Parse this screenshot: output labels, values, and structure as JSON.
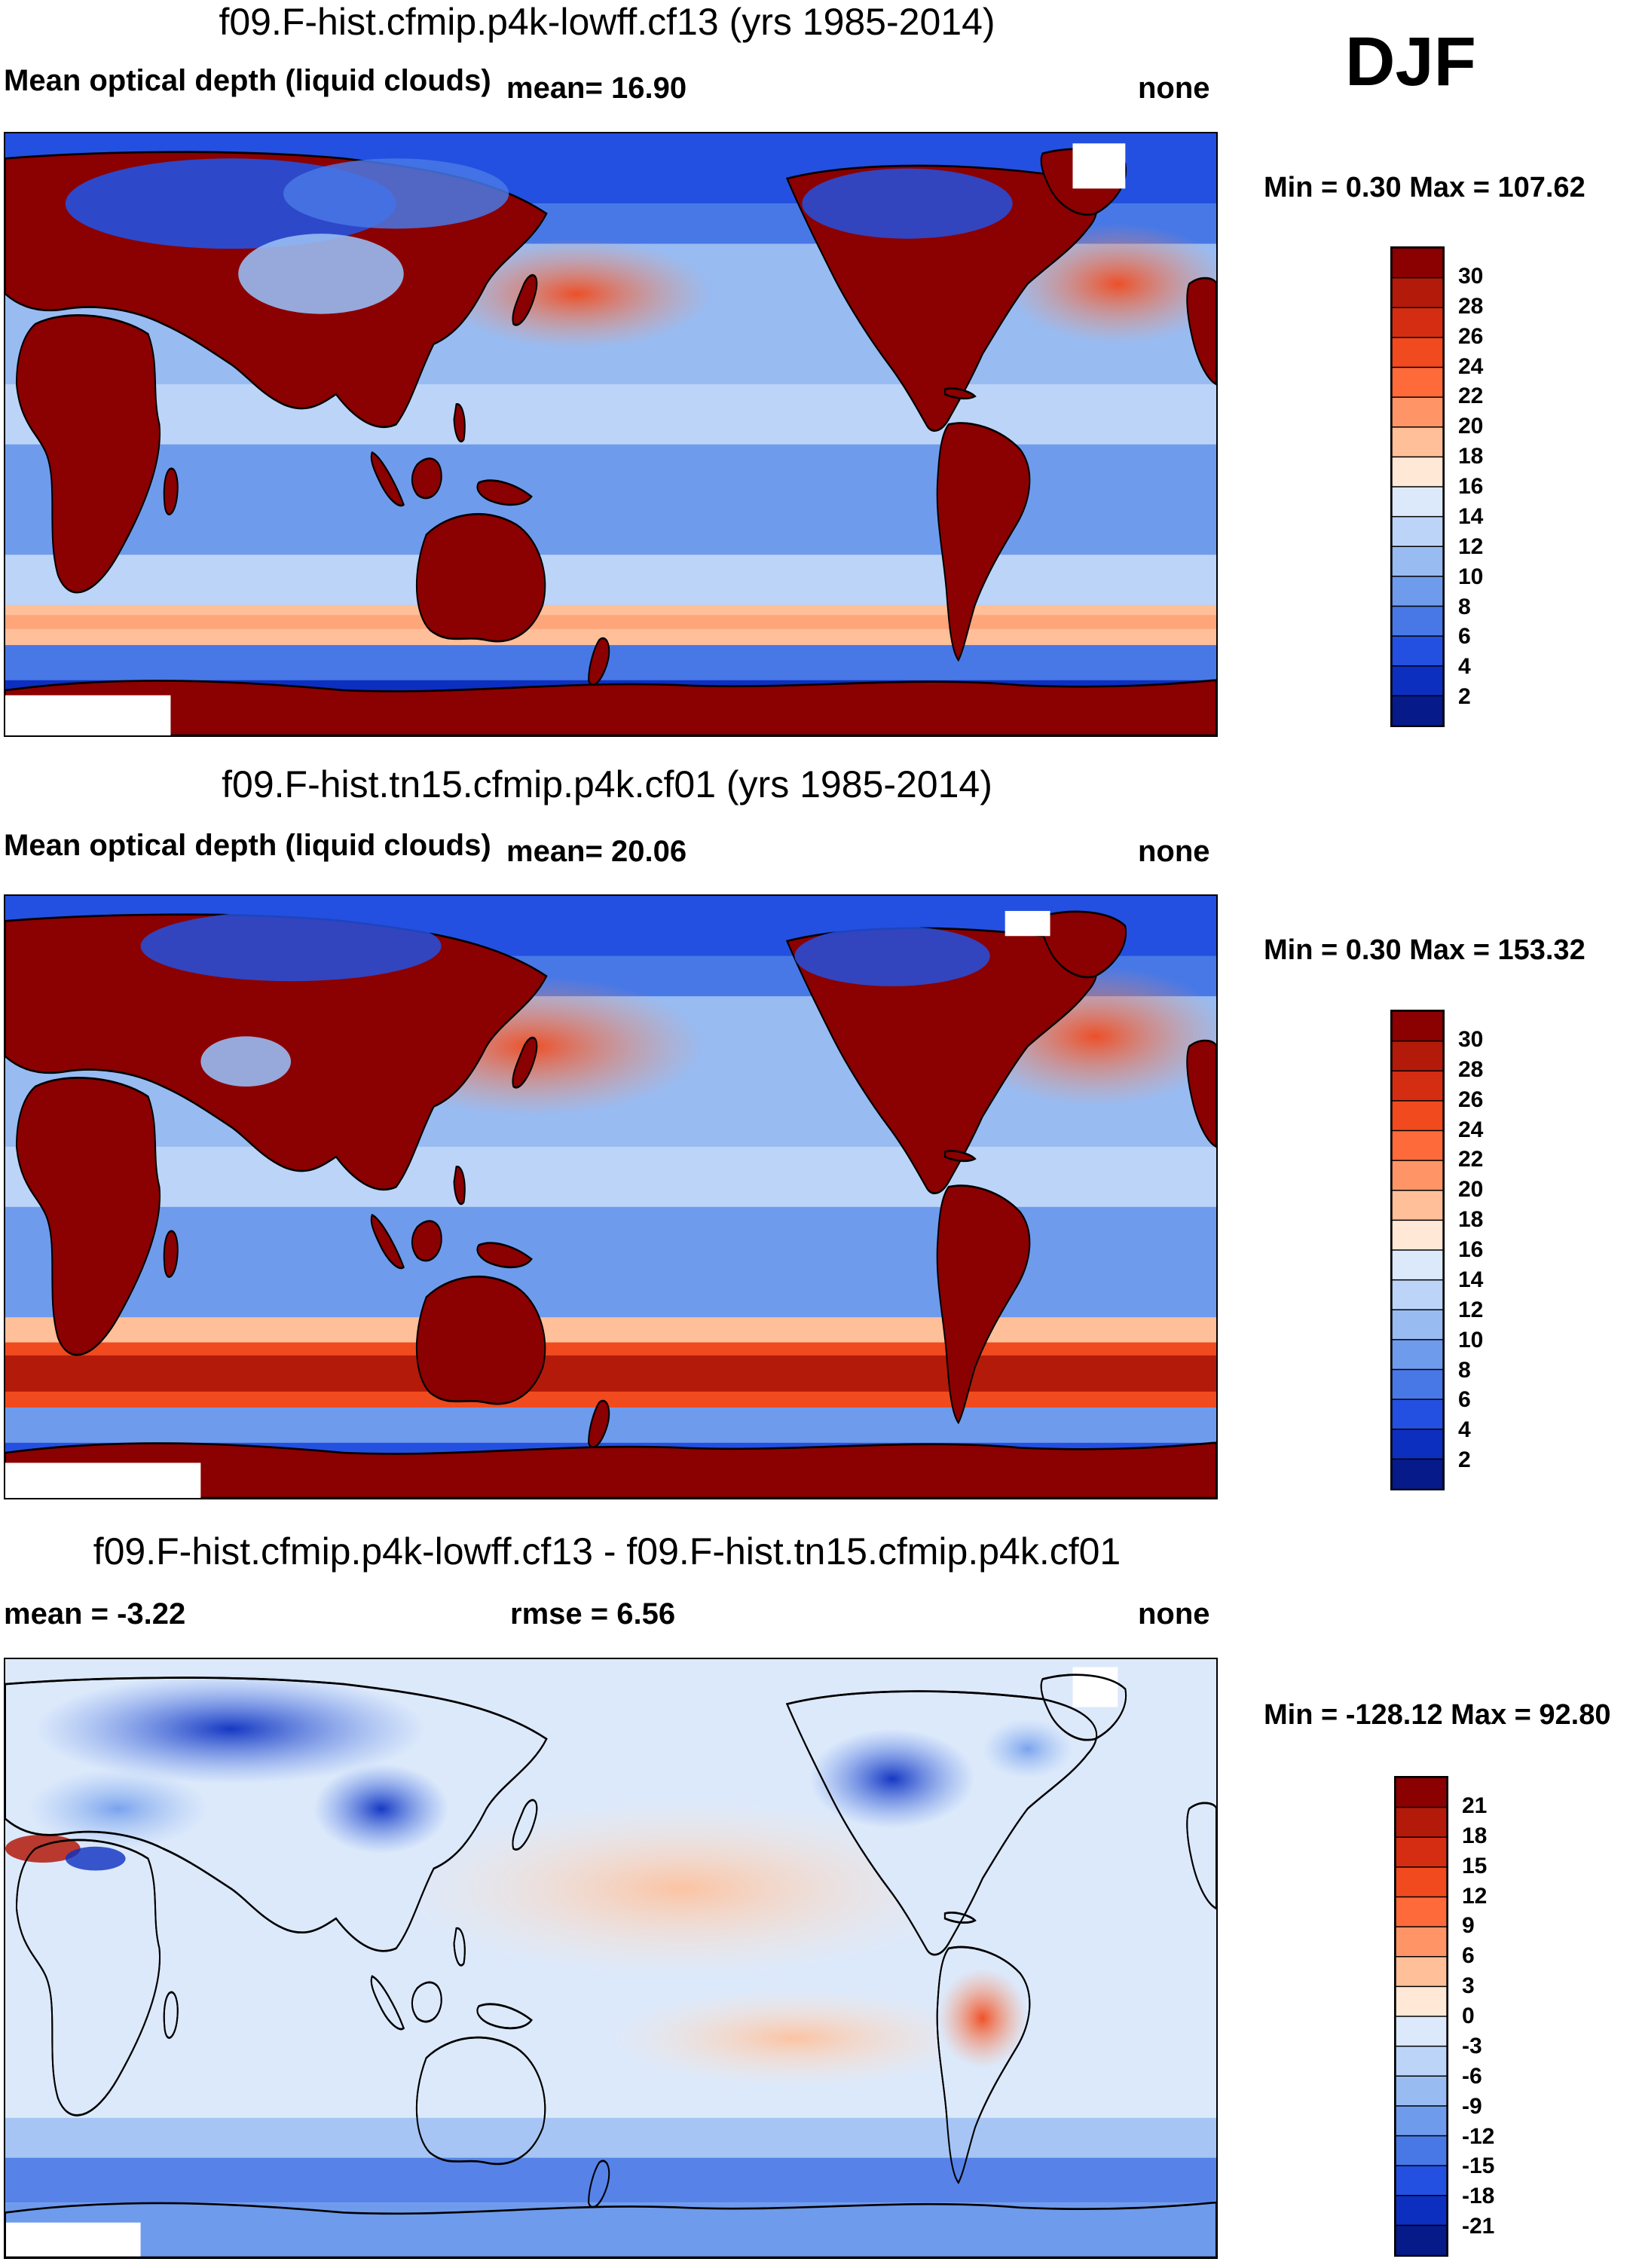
{
  "season": "DJF",
  "panels": [
    {
      "title": "f09.F-hist.cfmip.p4k-lowff.cf13 (yrs 1985-2014)",
      "variable": "Mean optical depth (liquid clouds)",
      "mean": "mean=  16.90",
      "right": "none",
      "minmax": "Min =   0.30 Max = 107.62"
    },
    {
      "title": "f09.F-hist.tn15.cfmip.p4k.cf01 (yrs 1985-2014)",
      "variable": "Mean optical depth (liquid clouds)",
      "mean": "mean=  20.06",
      "right": "none",
      "minmax": "Min =   0.30 Max = 153.32"
    },
    {
      "title": "f09.F-hist.cfmip.p4k-lowff.cf13 - f09.F-hist.tn15.cfmip.p4k.cf01",
      "mean": "mean =  -3.22",
      "rmse": "rmse =   6.56",
      "right": "none",
      "minmax": "Min = -128.12 Max =  92.80"
    }
  ],
  "colorbars": {
    "abs": {
      "labels": [
        "30",
        "28",
        "26",
        "24",
        "22",
        "20",
        "18",
        "16",
        "14",
        "12",
        "10",
        "8",
        "6",
        "4",
        "2"
      ],
      "colors": [
        "#8b0000",
        "#b31a0a",
        "#d42d12",
        "#f04a1e",
        "#ff6a3a",
        "#ff9566",
        "#ffbf99",
        "#ffe8d6",
        "#dce9fb",
        "#bcd4f7",
        "#98bbf2",
        "#6f9bec",
        "#4878e6",
        "#2350e0",
        "#0c2fc0",
        "#061a8a"
      ]
    },
    "diff": {
      "labels": [
        "21",
        "18",
        "15",
        "12",
        "9",
        "6",
        "3",
        "0",
        "-3",
        "-6",
        "-9",
        "-12",
        "-15",
        "-18",
        "-21"
      ],
      "colors": [
        "#8b0000",
        "#b31a0a",
        "#d42d12",
        "#f04a1e",
        "#ff6a3a",
        "#ff9566",
        "#ffbf99",
        "#ffe8d6",
        "#dce9fb",
        "#bcd4f7",
        "#98bbf2",
        "#6f9bec",
        "#4878e6",
        "#2350e0",
        "#0c2fc0",
        "#061a8a"
      ]
    }
  }
}
